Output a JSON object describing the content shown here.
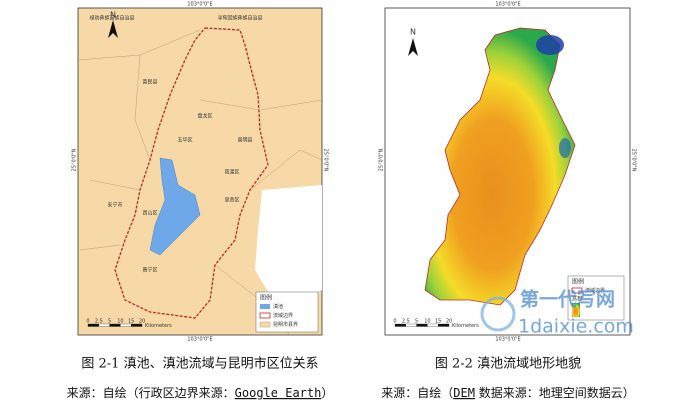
{
  "figures": [
    {
      "north": "N",
      "lon_label": "103°0'0\"E",
      "lat_label": "25°0'0\"N",
      "places": [
        "禄劝彝族苗族自治县",
        "寻甸回族彝族自治县",
        "富民县",
        "盘龙区",
        "五华区",
        "嵩明县",
        "官渡区",
        "安宁市",
        "西山区",
        "呈贡区",
        "晋宁区"
      ],
      "legend": {
        "title": "图例",
        "items": [
          "滇池",
          "流域边界",
          "昆明市县界"
        ]
      },
      "scale": {
        "ticks": [
          "0",
          "2.5",
          "5",
          "10",
          "15",
          "20"
        ],
        "unit": "Kilometers"
      },
      "caption": "图 2-1 滇池、滇池流域与昆明市区位关系",
      "source_prefix": "来源：自绘（行政区边界来源：",
      "source_highlight": "Google Earth",
      "source_suffix": "）"
    },
    {
      "north": "N",
      "lon_label": "103°0'0\"E",
      "lat_label": "25°0'0\"N",
      "legend": {
        "title": "图例",
        "items": [
          "流域边界",
          "高程"
        ]
      },
      "scale": {
        "ticks": [
          "0",
          "2.5",
          "5",
          "10",
          "15",
          "20"
        ],
        "unit": "Kilometers"
      },
      "caption": "图 2-2 滇池流域地形地貌",
      "source_prefix": "来源：自绘（",
      "source_highlight": "DEM",
      "source_suffix": " 数据来源：地理空间数据云）"
    }
  ],
  "watermark": {
    "cn": "第一代写网",
    "url": "1daixie.com"
  }
}
